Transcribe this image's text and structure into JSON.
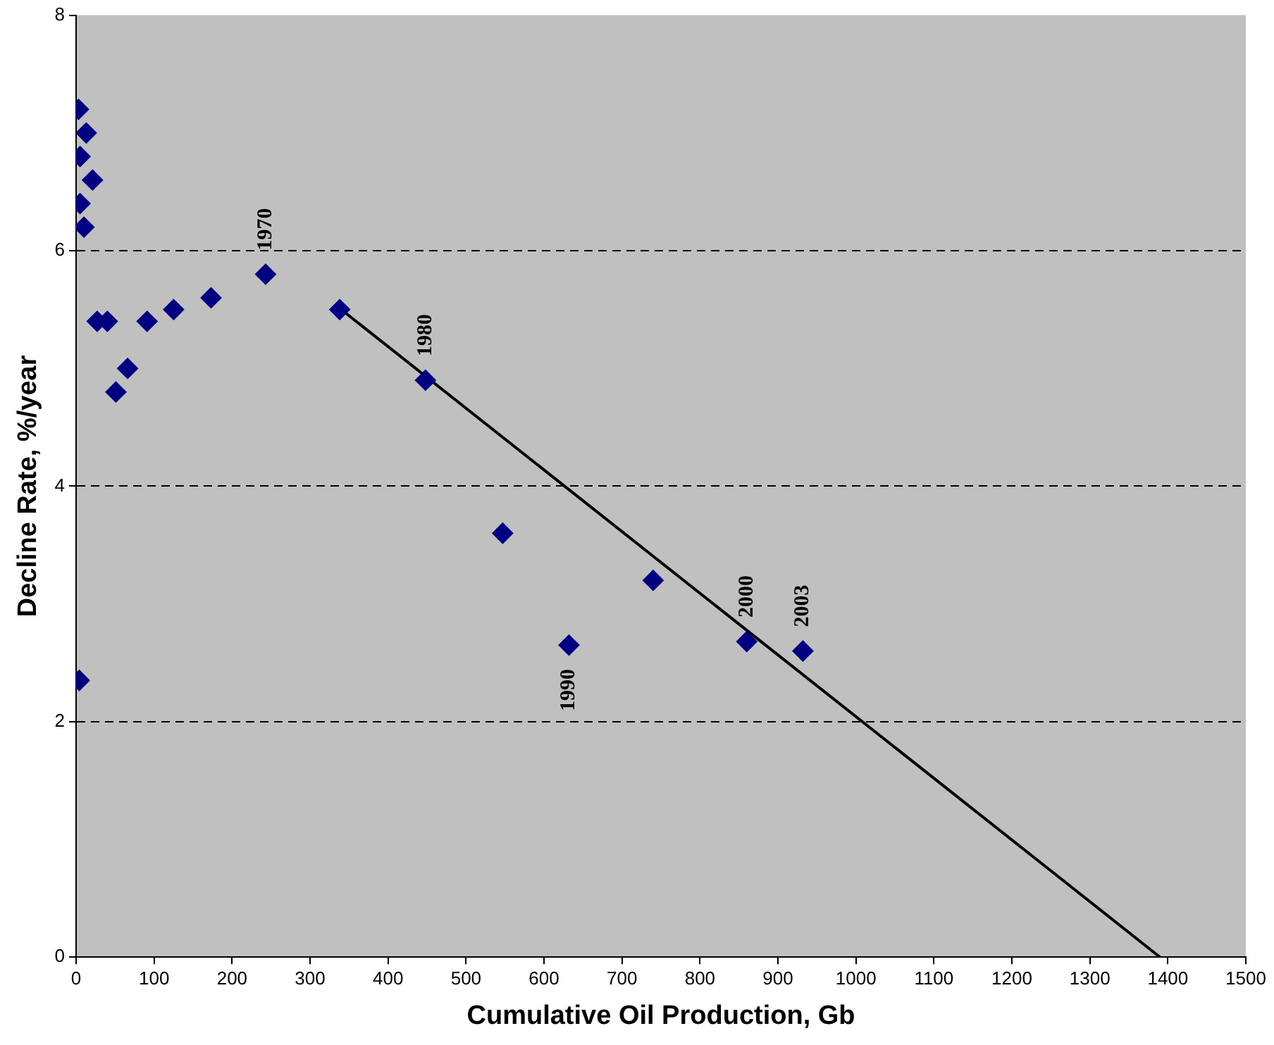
{
  "chart_data": {
    "type": "scatter",
    "xlabel": "Cumulative Oil Production, Gb",
    "ylabel": "Decline Rate, %/year",
    "xlim": [
      0,
      1500
    ],
    "xticks": [
      0,
      100,
      200,
      300,
      400,
      500,
      600,
      700,
      800,
      900,
      1000,
      1100,
      1200,
      1300,
      1400,
      1500
    ],
    "ylim": [
      0,
      8
    ],
    "yticks": [
      0,
      2,
      4,
      6,
      8
    ],
    "grid": "y",
    "legend": false,
    "marker": "diamond",
    "series": [
      {
        "color": "#000080",
        "x": [
          3,
          5,
          13,
          5,
          21,
          10,
          27,
          40,
          51,
          66,
          91,
          125,
          173,
          243,
          338,
          448,
          547,
          632,
          740,
          860,
          932,
          4
        ],
        "values": [
          7.2,
          6.8,
          7.0,
          6.4,
          6.6,
          6.2,
          5.4,
          5.4,
          4.8,
          5.0,
          5.4,
          5.5,
          5.6,
          5.8,
          5.5,
          4.9,
          3.6,
          2.65,
          3.2,
          2.68,
          2.6,
          2.35
        ]
      },
      {
        "type": "line",
        "color": "#000000",
        "marker": "none",
        "x": [
          340,
          1390
        ],
        "values": [
          5.5,
          0
        ]
      }
    ],
    "annotations": [
      {
        "text": "1970",
        "x": 243,
        "y": 5.8
      },
      {
        "text": "1980",
        "x": 448,
        "y": 4.9
      },
      {
        "text": "1990",
        "x": 632,
        "y": 2.65
      },
      {
        "text": "2000",
        "x": 860,
        "y": 2.68
      },
      {
        "text": "2003",
        "x": 932,
        "y": 2.6
      }
    ]
  }
}
